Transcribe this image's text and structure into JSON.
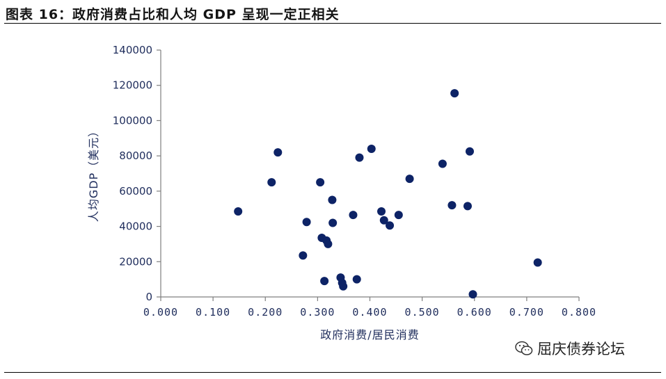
{
  "title": "图表 16：政府消费占比和人均 GDP 呈现一定正相关",
  "watermark": {
    "icon": "wechat-icon",
    "text": "屈庆债券论坛"
  },
  "colors": {
    "marker": "#0d2366",
    "axis": "#7f7f7f",
    "tick_text": "#1f2d5c"
  },
  "chart_data": {
    "type": "scatter",
    "xlabel": "政府消费/居民消费",
    "ylabel": "人均GDP（美元）",
    "xlim": [
      0,
      0.8
    ],
    "ylim": [
      0,
      140000
    ],
    "x_ticks": [
      "0.000",
      "0.100",
      "0.200",
      "0.300",
      "0.400",
      "0.500",
      "0.600",
      "0.700",
      "0.800"
    ],
    "y_ticks": [
      "0",
      "20000",
      "40000",
      "60000",
      "80000",
      "100000",
      "120000",
      "140000"
    ],
    "grid": false,
    "legend": "none",
    "points": [
      {
        "x": 0.148,
        "y": 48500
      },
      {
        "x": 0.212,
        "y": 65000
      },
      {
        "x": 0.224,
        "y": 82000
      },
      {
        "x": 0.272,
        "y": 23500
      },
      {
        "x": 0.279,
        "y": 42500
      },
      {
        "x": 0.305,
        "y": 65000
      },
      {
        "x": 0.308,
        "y": 33500
      },
      {
        "x": 0.313,
        "y": 9000
      },
      {
        "x": 0.317,
        "y": 32000
      },
      {
        "x": 0.32,
        "y": 30000
      },
      {
        "x": 0.328,
        "y": 55000
      },
      {
        "x": 0.329,
        "y": 42000
      },
      {
        "x": 0.344,
        "y": 11000
      },
      {
        "x": 0.347,
        "y": 8000
      },
      {
        "x": 0.349,
        "y": 6000
      },
      {
        "x": 0.368,
        "y": 46500
      },
      {
        "x": 0.375,
        "y": 10000
      },
      {
        "x": 0.38,
        "y": 79000
      },
      {
        "x": 0.403,
        "y": 84000
      },
      {
        "x": 0.422,
        "y": 48500
      },
      {
        "x": 0.427,
        "y": 43500
      },
      {
        "x": 0.438,
        "y": 40500
      },
      {
        "x": 0.455,
        "y": 46500
      },
      {
        "x": 0.476,
        "y": 67000
      },
      {
        "x": 0.539,
        "y": 75500
      },
      {
        "x": 0.557,
        "y": 52000
      },
      {
        "x": 0.562,
        "y": 115500
      },
      {
        "x": 0.587,
        "y": 51500
      },
      {
        "x": 0.591,
        "y": 82500
      },
      {
        "x": 0.597,
        "y": 1500
      },
      {
        "x": 0.721,
        "y": 19500
      }
    ]
  }
}
